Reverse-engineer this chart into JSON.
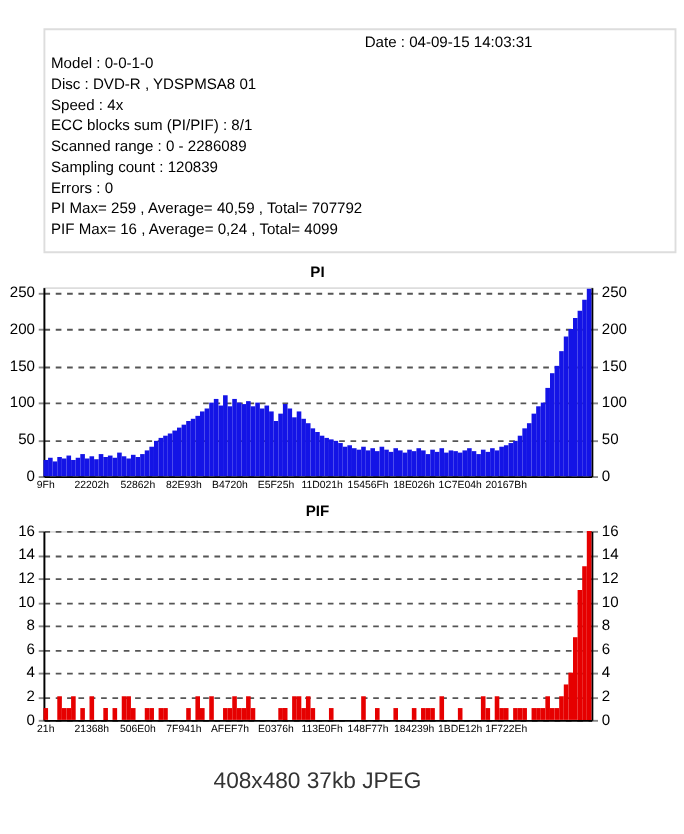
{
  "chart_data": [
    {
      "type": "other",
      "annotations": [
        "Date : 04-09-15 14:03:31",
        "Model : 0-0-1-0",
        "Disc : DVD-R , YDSPMSA8 01",
        "Speed : 4x",
        "ECC blocks sum (PI/PIF) : 8/1",
        "Scanned range : 0 - 2286089",
        "Sampling count : 120839",
        "Errors : 0",
        "PI Max= 259 , Average= 40,59 , Total= 707792",
        "PIF Max= 16 , Average= 0,24 , Total= 4099"
      ]
    },
    {
      "type": "bar",
      "title": "PI",
      "color": "#1414e6",
      "grid": "y",
      "ylim": [
        0,
        257
      ],
      "yticks": [
        0,
        50,
        100,
        150,
        200,
        250
      ],
      "y2lim": [
        0,
        257
      ],
      "y2ticks": [
        0,
        50,
        100,
        150,
        200,
        250
      ],
      "categories": [
        "9Fh",
        null,
        null,
        null,
        null,
        null,
        null,
        null,
        null,
        null,
        "22202h",
        null,
        null,
        null,
        null,
        null,
        null,
        null,
        null,
        null,
        "52862h",
        null,
        null,
        null,
        null,
        null,
        null,
        null,
        null,
        null,
        "82E93h",
        null,
        null,
        null,
        null,
        null,
        null,
        null,
        null,
        null,
        "B4720h",
        null,
        null,
        null,
        null,
        null,
        null,
        null,
        null,
        null,
        "E5F25h",
        null,
        null,
        null,
        null,
        null,
        null,
        null,
        null,
        null,
        "11D021h",
        null,
        null,
        null,
        null,
        null,
        null,
        null,
        null,
        null,
        "15456Fh",
        null,
        null,
        null,
        null,
        null,
        null,
        null,
        null,
        null,
        "18E026h",
        null,
        null,
        null,
        null,
        null,
        null,
        null,
        null,
        null,
        "1C7E04h",
        null,
        null,
        null,
        null,
        null,
        null,
        null,
        null,
        null,
        "20167Bh",
        null,
        null,
        null,
        null,
        null,
        null,
        null,
        null,
        null,
        null,
        null,
        null,
        null,
        null,
        null,
        null,
        null,
        null
      ],
      "values": [
        22,
        25,
        20,
        26,
        24,
        28,
        22,
        25,
        30,
        24,
        27,
        23,
        30,
        26,
        28,
        25,
        32,
        27,
        24,
        29,
        26,
        30,
        35,
        40,
        48,
        52,
        55,
        58,
        62,
        66,
        70,
        75,
        78,
        82,
        88,
        92,
        100,
        105,
        96,
        110,
        95,
        105,
        100,
        98,
        102,
        95,
        100,
        92,
        96,
        88,
        75,
        85,
        98,
        92,
        80,
        88,
        78,
        72,
        65,
        60,
        55,
        52,
        50,
        48,
        45,
        40,
        42,
        38,
        36,
        40,
        35,
        38,
        34,
        40,
        36,
        33,
        38,
        35,
        32,
        36,
        34,
        38,
        35,
        30,
        36,
        33,
        38,
        32,
        35,
        34,
        32,
        35,
        38,
        34,
        30,
        36,
        33,
        38,
        35,
        40,
        42,
        45,
        48,
        55,
        65,
        72,
        85,
        95,
        100,
        120,
        140,
        150,
        170,
        190,
        200,
        215,
        225,
        240,
        255
      ]
    },
    {
      "type": "bar",
      "title": "PIF",
      "color": "#e60000",
      "grid": "y",
      "ylim": [
        0,
        16
      ],
      "yticks": [
        0,
        2,
        4,
        6,
        8,
        10,
        12,
        14,
        16
      ],
      "y2lim": [
        0,
        16
      ],
      "y2ticks": [
        0,
        2,
        4,
        6,
        8,
        10,
        12,
        14,
        16
      ],
      "annotations": [
        "408x480 37kb JPEG"
      ],
      "categories": [
        "21h",
        null,
        null,
        null,
        null,
        null,
        null,
        null,
        null,
        null,
        "21368h",
        null,
        null,
        null,
        null,
        null,
        null,
        null,
        null,
        null,
        "506E0h",
        null,
        null,
        null,
        null,
        null,
        null,
        null,
        null,
        null,
        "7F941h",
        null,
        null,
        null,
        null,
        null,
        null,
        null,
        null,
        null,
        "AFEF7h",
        null,
        null,
        null,
        null,
        null,
        null,
        null,
        null,
        null,
        "E0376h",
        null,
        null,
        null,
        null,
        null,
        null,
        null,
        null,
        null,
        "113E0Fh",
        null,
        null,
        null,
        null,
        null,
        null,
        null,
        null,
        null,
        "148F77h",
        null,
        null,
        null,
        null,
        null,
        null,
        null,
        null,
        null,
        "184239h",
        null,
        null,
        null,
        null,
        null,
        null,
        null,
        null,
        null,
        "1BDE12h",
        null,
        null,
        null,
        null,
        null,
        null,
        null,
        null,
        null,
        "1F722Eh",
        null,
        null,
        null,
        null,
        null,
        null,
        null,
        null,
        null,
        null,
        null,
        null,
        null,
        null,
        null,
        null,
        null,
        null
      ],
      "values": [
        1,
        0,
        0,
        2,
        1,
        1,
        2,
        0,
        1,
        0,
        2,
        0,
        0,
        1,
        0,
        1,
        0,
        2,
        2,
        1,
        0,
        0,
        1,
        1,
        0,
        1,
        1,
        0,
        0,
        0,
        0,
        1,
        0,
        2,
        1,
        0,
        2,
        0,
        0,
        1,
        1,
        2,
        1,
        1,
        2,
        1,
        0,
        0,
        0,
        0,
        0,
        1,
        1,
        0,
        2,
        2,
        1,
        2,
        1,
        0,
        0,
        0,
        1,
        0,
        0,
        0,
        0,
        0,
        0,
        2,
        0,
        0,
        1,
        0,
        0,
        0,
        1,
        0,
        0,
        0,
        1,
        0,
        1,
        1,
        1,
        0,
        2,
        0,
        0,
        0,
        1,
        0,
        0,
        0,
        0,
        2,
        1,
        0,
        2,
        1,
        1,
        0,
        1,
        1,
        1,
        0,
        1,
        1,
        1,
        2,
        1,
        1,
        2,
        3,
        4,
        7,
        11,
        13,
        16
      ]
    }
  ]
}
